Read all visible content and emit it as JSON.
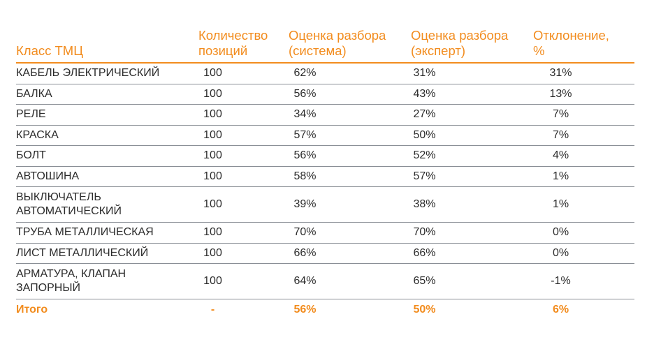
{
  "table": {
    "headers": [
      "Класс ТМЦ",
      "Количество позиций",
      "Оценка разбора (система)",
      "Оценка разбора (эксперт)",
      "Отклонение, %"
    ],
    "rows": [
      [
        "КАБЕЛЬ ЭЛЕКТРИЧЕСКИЙ",
        "100",
        "62%",
        "31%",
        "31%"
      ],
      [
        "БАЛКА",
        "100",
        "56%",
        "43%",
        "13%"
      ],
      [
        "РЕЛЕ",
        "100",
        "34%",
        "27%",
        "7%"
      ],
      [
        "КРАСКА",
        "100",
        "57%",
        "50%",
        "7%"
      ],
      [
        "БОЛТ",
        "100",
        "56%",
        "52%",
        "4%"
      ],
      [
        "АВТОШИНА",
        "100",
        "58%",
        "57%",
        "1%"
      ],
      [
        "ВЫКЛЮЧАТЕЛЬ АВТОМАТИЧЕСКИЙ",
        "100",
        "39%",
        "38%",
        "1%"
      ],
      [
        "ТРУБА МЕТАЛЛИЧЕСКАЯ",
        "100",
        "70%",
        "70%",
        "0%"
      ],
      [
        "ЛИСТ МЕТАЛЛИЧЕСКИЙ",
        "100",
        "66%",
        "66%",
        "0%"
      ],
      [
        "АРМАТУРА, КЛАПАН ЗАПОРНЫЙ",
        "100",
        "64%",
        "65%",
        "-1%"
      ]
    ],
    "total": [
      "Итого",
      "-",
      "56%",
      "50%",
      "6%"
    ]
  },
  "colors": {
    "accent": "#f28c1e",
    "text": "#2b2b2b",
    "rule": "#8a8f96"
  }
}
